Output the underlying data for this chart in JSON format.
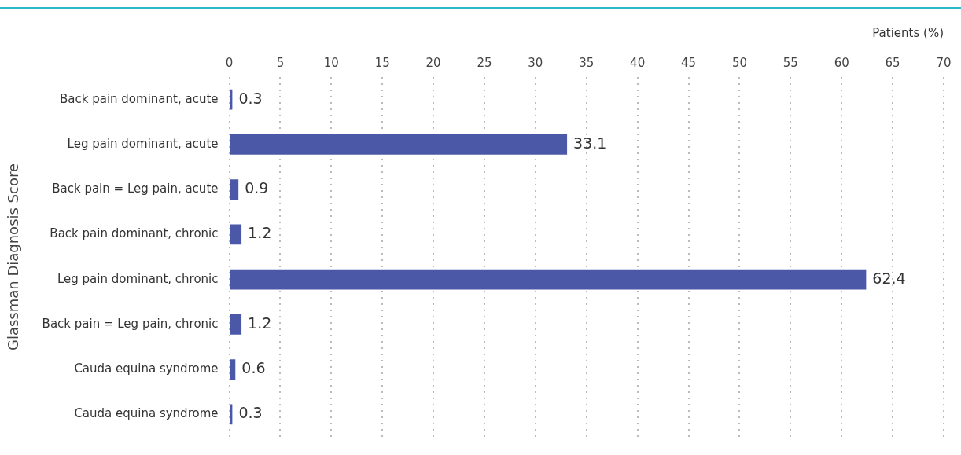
{
  "chart_data": {
    "type": "bar",
    "orientation": "horizontal",
    "xlabel": "Patients (%)",
    "ylabel": "Glassman Diagnosis Score",
    "categories": [
      "Back pain dominant, acute",
      "Leg pain dominant, acute",
      "Back pain = Leg pain, acute",
      "Back pain dominant, chronic",
      "Leg pain dominant, chronic",
      "Back pain = Leg pain, chronic",
      "Cauda equina syndrome",
      "Cauda equina syndrome"
    ],
    "values": [
      0.3,
      33.1,
      0.9,
      1.2,
      62.4,
      1.2,
      0.6,
      0.3
    ],
    "color": "#4b58a8",
    "xlim": [
      0,
      70
    ],
    "xticks": [
      0,
      5,
      10,
      15,
      20,
      25,
      30,
      35,
      40,
      45,
      50,
      55,
      60,
      65,
      70
    ],
    "grid": "x",
    "data_labels": true
  }
}
